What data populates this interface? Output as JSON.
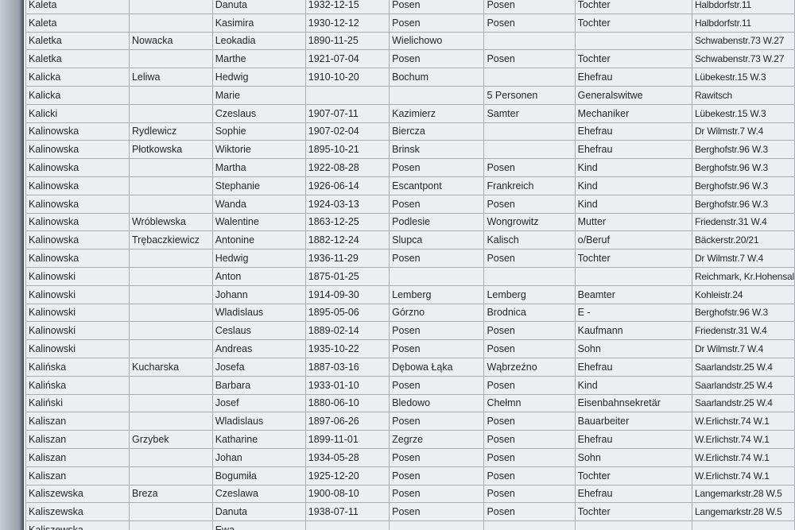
{
  "table": {
    "rows": [
      [
        "Kaleta",
        null,
        "Danuta",
        "1932-12-15",
        "Posen",
        "Posen",
        "Tochter",
        "Halbdorfstr.11"
      ],
      [
        "Kaleta",
        null,
        "Kasimira",
        "1930-12-12",
        "Posen",
        "Posen",
        "Tochter",
        "Halbdorfstr.11"
      ],
      [
        "Kaletka",
        "Nowacka",
        "Leokadia",
        "1890-11-25",
        "Wielichowo",
        null,
        null,
        "Schwabenstr.73 W.27"
      ],
      [
        "Kaletka",
        null,
        "Marthe",
        "1921-07-04",
        "Posen",
        "Posen",
        "Tochter",
        "Schwabenstr.73 W.27"
      ],
      [
        "Kalicka",
        "Leliwa",
        "Hedwig",
        "1910-10-20",
        "Bochum",
        null,
        "Ehefrau",
        "Lübekestr.15 W.3"
      ],
      [
        "Kalicka",
        null,
        "Marie",
        null,
        null,
        "5 Personen",
        "Generalswitwe",
        "Rawitsch"
      ],
      [
        "Kalicki",
        null,
        "Czeslaus",
        "1907-07-11",
        "Kazimierz",
        "Samter",
        "Mechaniker",
        "Lübekestr.15 W.3"
      ],
      [
        "Kalinowska",
        "Rydlewicz",
        "Sophie",
        "1907-02-04",
        "Biercza",
        null,
        "Ehefrau",
        "Dr Wilmstr.7 W.4"
      ],
      [
        "Kalinowska",
        "Płotkowska",
        "Wiktorie",
        "1895-10-21",
        "Brinsk",
        null,
        "Ehefrau",
        "Berghofstr.96 W.3"
      ],
      [
        "Kalinowska",
        null,
        "Martha",
        "1922-08-28",
        "Posen",
        "Posen",
        "Kind",
        "Berghofstr.96 W.3"
      ],
      [
        "Kalinowska",
        null,
        "Stephanie",
        "1926-06-14",
        "Escantpont",
        "Frankreich",
        "Kind",
        "Berghofstr.96 W.3"
      ],
      [
        "Kalinowska",
        null,
        "Wanda",
        "1924-03-13",
        "Posen",
        "Posen",
        "Kind",
        "Berghofstr.96 W.3"
      ],
      [
        "Kalinowska",
        "Wróblewska",
        "Walentine",
        "1863-12-25",
        "Podlesie",
        "Wongrowitz",
        "Mutter",
        "Friedenstr.31 W.4"
      ],
      [
        "Kalinowska",
        "Trębaczkiewicz",
        "Antonine",
        "1882-12-24",
        "Slupca",
        "Kalisch",
        "o/Beruf",
        "Bäckerstr.20/21"
      ],
      [
        "Kalinowska",
        null,
        "Hedwig",
        "1936-11-29",
        "Posen",
        "Posen",
        "Tochter",
        "Dr Wilmstr.7 W.4"
      ],
      [
        "Kalinowski",
        null,
        "Anton",
        "1875-01-25",
        null,
        null,
        null,
        "Reichmark, Kr.Hohensal"
      ],
      [
        "Kalinowski",
        null,
        "Johann",
        "1914-09-30",
        "Lemberg",
        "Lemberg",
        "Beamter",
        "Kohleistr.24"
      ],
      [
        "Kalinowski",
        null,
        "Wladislaus",
        "1895-05-06",
        "Górzno",
        "Brodnica",
        "E -",
        "Berghofstr.96 W.3"
      ],
      [
        "Kalinowski",
        null,
        "Ceslaus",
        "1889-02-14",
        "Posen",
        "Posen",
        "Kaufmann",
        "Friedenstr.31 W.4"
      ],
      [
        "Kalinowski",
        null,
        "Andreas",
        "1935-10-22",
        "Posen",
        "Posen",
        "Sohn",
        "Dr Wilmstr.7 W.4"
      ],
      [
        "Kalińska",
        "Kucharska",
        "Josefa",
        "1887-03-16",
        "Dębowa Łąka",
        "Wąbrzeźno",
        "Ehefrau",
        "Saarlandstr.25 W.4"
      ],
      [
        "Kalińska",
        null,
        "Barbara",
        "1933-01-10",
        "Posen",
        "Posen",
        "Kind",
        "Saarlandstr.25 W.4"
      ],
      [
        "Kaliński",
        null,
        "Josef",
        "1880-06-10",
        "Bledowo",
        "Chełmn",
        "Eisenbahnsekretär",
        "Saarlandstr.25 W.4"
      ],
      [
        "Kaliszan",
        null,
        "Wladislaus",
        "1897-06-26",
        "Posen",
        "Posen",
        "Bauarbeiter",
        "W.Erlichstr.74 W.1"
      ],
      [
        "Kaliszan",
        "Grzybek",
        "Katharine",
        "1899-11-01",
        "Zegrze",
        "Posen",
        "Ehefrau",
        "W.Erlichstr.74 W.1"
      ],
      [
        "Kaliszan",
        null,
        "Johan",
        "1934-05-28",
        "Posen",
        "Posen",
        "Sohn",
        "W.Erlichstr.74 W.1"
      ],
      [
        "Kaliszan",
        null,
        "Bogumiła",
        "1925-12-20",
        "Posen",
        "Posen",
        "Tochter",
        "W.Erlichstr.74 W.1"
      ],
      [
        "Kaliszewska",
        "Breza",
        "Czeslawa",
        "1900-08-10",
        "Posen",
        "Posen",
        "Ehefrau",
        "Langemarkstr.28 W.5"
      ],
      [
        "Kaliszewska",
        null,
        "Danuta",
        "1938-07-11",
        "Posen",
        "Posen",
        "Tochter",
        "Langemarkstr.28 W.5"
      ],
      [
        "Kaliszewska",
        null,
        "Ewa",
        null,
        null,
        null,
        null,
        null
      ]
    ]
  }
}
